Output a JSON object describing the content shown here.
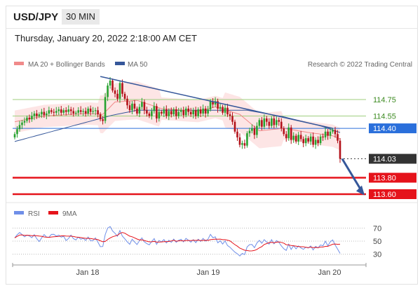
{
  "header": {
    "symbol": "USD/JPY",
    "timeframe": "30 MIN",
    "datetime": "Thursday, January 20, 2022 2:18:00 AM CET"
  },
  "legend": {
    "ma20_label": "MA 20 + Bollinger Bands",
    "ma50_label": "MA 50",
    "credit": "Research © 2022 Trading Central",
    "rsi_label": "RSI",
    "ma9_label": "9MA"
  },
  "colors": {
    "bullish": "#27a22f",
    "bearish": "#b3121a",
    "ma20": "#f08a8a",
    "ma50": "#35579a",
    "bands_fill": "#fde2e2",
    "resistance": "#9fcf7e",
    "pivot": "#2a6fdb",
    "support": "#e5131b",
    "rsi": "#6f8fe8",
    "rsi_ma": "#e5131b"
  },
  "chart_data": [
    {
      "type": "candlestick",
      "x_ticks": [
        "Jan 18",
        "Jan 19",
        "Jan 20"
      ],
      "ylim": [
        113.45,
        115.25
      ],
      "levels": [
        {
          "label": "114.75",
          "value": 114.75,
          "kind": "resistance"
        },
        {
          "label": "114.55",
          "value": 114.55,
          "kind": "resistance"
        },
        {
          "label": "114.40",
          "value": 114.4,
          "kind": "pivot"
        },
        {
          "label": "114.03",
          "value": 114.03,
          "kind": "last"
        },
        {
          "label": "113.80",
          "value": 113.8,
          "kind": "support"
        },
        {
          "label": "113.60",
          "value": 113.6,
          "kind": "support"
        }
      ],
      "closes": [
        114.33,
        114.39,
        114.44,
        114.47,
        114.49,
        114.53,
        114.51,
        114.55,
        114.58,
        114.55,
        114.57,
        114.6,
        114.56,
        114.58,
        114.62,
        114.6,
        114.59,
        114.61,
        114.63,
        114.59,
        114.62,
        114.6,
        114.63,
        114.61,
        114.58,
        114.59,
        114.62,
        114.6,
        114.61,
        114.58,
        114.64,
        114.6,
        114.61,
        114.62,
        114.57,
        114.51,
        114.49,
        114.78,
        114.92,
        114.98,
        114.86,
        114.82,
        114.76,
        114.95,
        114.82,
        114.76,
        114.68,
        114.62,
        114.7,
        114.64,
        114.58,
        114.66,
        114.72,
        114.62,
        114.58,
        114.55,
        114.61,
        114.67,
        114.52,
        114.6,
        114.58,
        114.63,
        114.55,
        114.61,
        114.57,
        114.63,
        114.55,
        114.6,
        114.62,
        114.56,
        114.64,
        114.6,
        114.57,
        114.62,
        114.55,
        114.63,
        114.58,
        114.64,
        114.58,
        114.63,
        114.73,
        114.69,
        114.73,
        114.64,
        114.66,
        114.59,
        114.65,
        114.57,
        114.55,
        114.48,
        114.36,
        114.29,
        114.2,
        114.22,
        114.19,
        114.34,
        114.37,
        114.4,
        114.32,
        114.43,
        114.5,
        114.42,
        114.52,
        114.48,
        114.43,
        114.52,
        114.44,
        114.5,
        114.48,
        114.4,
        114.33,
        114.28,
        114.41,
        114.26,
        114.31,
        114.24,
        114.32,
        114.27,
        114.22,
        114.28,
        114.24,
        114.3,
        114.2,
        114.26,
        114.22,
        114.3,
        114.29,
        114.36,
        114.31,
        114.36,
        114.38,
        114.33,
        114.25,
        114.03
      ],
      "ma20_points": [
        [
          0,
          114.48
        ],
        [
          12,
          114.55
        ],
        [
          30,
          114.58
        ],
        [
          36,
          114.57
        ],
        [
          41,
          114.72
        ],
        [
          50,
          114.74
        ],
        [
          60,
          114.64
        ],
        [
          75,
          114.61
        ],
        [
          82,
          114.66
        ],
        [
          92,
          114.57
        ],
        [
          100,
          114.37
        ],
        [
          110,
          114.4
        ],
        [
          120,
          114.35
        ],
        [
          130,
          114.31
        ],
        [
          133,
          114.27
        ]
      ],
      "ma50_points": [
        [
          0,
          114.24
        ],
        [
          15,
          114.36
        ],
        [
          30,
          114.48
        ],
        [
          40,
          114.56
        ],
        [
          50,
          114.62
        ],
        [
          65,
          114.62
        ],
        [
          80,
          114.62
        ],
        [
          95,
          114.62
        ],
        [
          110,
          114.54
        ],
        [
          125,
          114.43
        ],
        [
          133,
          114.35
        ]
      ],
      "band_width": 0.17,
      "trendline": [
        [
          35,
          115.03
        ],
        [
          130,
          114.4
        ]
      ]
    },
    {
      "type": "line",
      "title": "RSI",
      "ylim": [
        20,
        80
      ],
      "y_ticks": [
        "70",
        "50",
        "30"
      ],
      "series": [
        {
          "name": "RSI",
          "values": [
            55.0,
            59.7,
            63.2,
            60.1,
            56.5,
            59.3,
            57.9,
            55.2,
            60.0,
            53.8,
            49.4,
            55.0,
            60.1,
            56.3,
            55.9,
            60.3,
            60.5,
            57.7,
            59.2,
            56.1,
            57.4,
            51.0,
            54.1,
            59.2,
            53.8,
            51.9,
            56.1,
            52.9,
            54.4,
            51.1,
            56.3,
            50.5,
            50.7,
            55.0,
            48.5,
            41.5,
            41.8,
            60.2,
            70.0,
            72.3,
            65.6,
            62.0,
            57.5,
            66.2,
            57.7,
            53.5,
            48.9,
            45.2,
            52.9,
            48.7,
            44.9,
            50.6,
            55.0,
            48.9,
            46.1,
            44.4,
            49.5,
            54.0,
            45.2,
            51.1,
            48.9,
            52.4,
            47.2,
            51.4,
            48.2,
            53.1,
            48.3,
            51.3,
            52.9,
            48.8,
            54.2,
            51.5,
            48.5,
            52.2,
            47.6,
            52.9,
            49.6,
            54.2,
            50.1,
            52.9,
            60.4,
            55.3,
            56.5,
            47.4,
            50.5,
            45.5,
            50.3,
            43.3,
            40.7,
            36.8,
            33.2,
            30.7,
            27.3,
            31.2,
            29.4,
            41.1,
            44.6,
            44.9,
            40.0,
            47.2,
            51.2,
            46.8,
            52.3,
            48.7,
            45.4,
            52.2,
            45.8,
            50.9,
            48.1,
            42.7,
            38.3,
            35.9,
            45.3,
            37.4,
            43.0,
            38.2,
            42.7,
            39.6,
            37.5,
            40.8,
            39.5,
            42.6,
            36.5,
            42.1,
            39.6,
            44.2,
            42.9,
            49.9,
            42.8,
            48.9,
            51.8,
            44.1,
            37.8,
            31.3
          ]
        },
        {
          "name": "9MA",
          "values": [
            55.0,
            57.3,
            59.3,
            59.5,
            58.9,
            59.0,
            58.8,
            58.3,
            58.5,
            58.4,
            57.7,
            57.4,
            56.4,
            56.0,
            55.8,
            56.3,
            56.6,
            57.0,
            57.3,
            58.0,
            58.1,
            57.8,
            57.6,
            57.6,
            57.1,
            56.3,
            55.9,
            55.5,
            54.8,
            54.3,
            54.3,
            54.0,
            53.3,
            52.9,
            52.3,
            50.5,
            49.0,
            49.6,
            52.6,
            54.9,
            56.6,
            57.8,
            59.0,
            61.7,
            63.3,
            62.1,
            59.9,
            57.6,
            56.6,
            55.0,
            53.2,
            51.9,
            52.0,
            51.0,
            49.9,
            48.9,
            49.0,
            49.6,
            48.5,
            48.6,
            48.8,
            49.3,
            49.2,
            49.5,
            50.3,
            51.3,
            49.9,
            50.4,
            50.7,
            50.2,
            51.0,
            51.0,
            50.9,
            51.3,
            51.1,
            51.6,
            50.9,
            51.2,
            51.4,
            51.1,
            52.3,
            52.7,
            53.1,
            53.0,
            53.1,
            52.3,
            52.2,
            51.5,
            50.4,
            47.4,
            44.6,
            42.3,
            39.3,
            37.8,
            36.1,
            35.6,
            35.0,
            35.1,
            35.8,
            37.4,
            39.8,
            41.6,
            44.9,
            46.3,
            47.8,
            48.2,
            47.4,
            48.4,
            48.8,
            48.1,
            46.9,
            44.5,
            44.4,
            43.2,
            42.9,
            42.4,
            41.8,
            41.4,
            41.4,
            40.6,
            40.0,
            40.9,
            40.1,
            40.4,
            40.1,
            41.0,
            41.0,
            42.0,
            42.1,
            43.7,
            45.3,
            45.6,
            45.2,
            45.3
          ]
        }
      ]
    }
  ]
}
